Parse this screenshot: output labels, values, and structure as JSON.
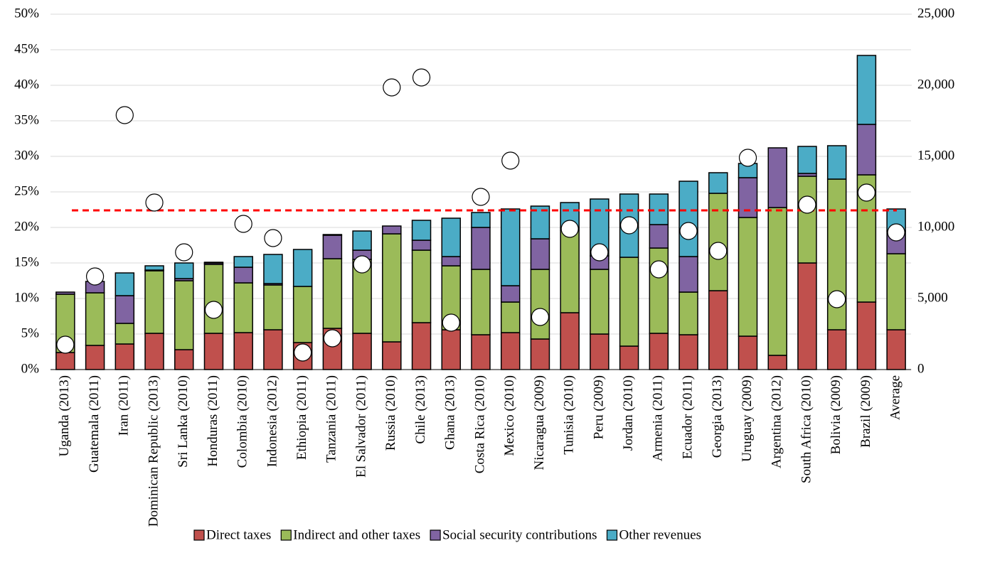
{
  "chart_data": {
    "type": "stacked_bar",
    "categories": [
      "Uganda (2013)",
      "Guatemala (2011)",
      "Iran (2011)",
      "Dominican Republic (2013)",
      "Sri Lanka (2010)",
      "Honduras (2011)",
      "Colombia (2010)",
      "Indonesia (2012)",
      "Ethiopia (2011)",
      "Tanzania (2011)",
      "El Salvador (2011)",
      "Russia (2010)",
      "Chile (2013)",
      "Ghana (2013)",
      "Costa Rica (2010)",
      "Mexico (2010)",
      "Nicaragua (2009)",
      "Tunisia (2010)",
      "Peru (2009)",
      "Jordan (2010)",
      "Armenia (2011)",
      "Ecuador (2011)",
      "Georgia (2013)",
      "Uruguay (2009)",
      "Argentina (2012)",
      "South Africa (2010)",
      "Bolivia (2009)",
      "Brazil (2009)",
      "Average"
    ],
    "series": [
      {
        "name": "Direct taxes",
        "color": "#c0504d",
        "values": [
          2.4,
          3.4,
          3.6,
          5.1,
          2.8,
          5.1,
          5.2,
          5.6,
          3.8,
          5.8,
          5.1,
          3.9,
          6.6,
          5.6,
          4.9,
          5.2,
          4.3,
          8.0,
          5.0,
          3.3,
          5.1,
          4.9,
          11.1,
          4.7,
          2.0,
          15.0,
          5.6,
          9.5,
          5.6
        ]
      },
      {
        "name": "Indirect and other taxes",
        "color": "#9bbb59",
        "values": [
          8.2,
          7.4,
          2.9,
          8.8,
          9.7,
          9.7,
          7.0,
          6.3,
          7.9,
          9.8,
          10.4,
          15.2,
          10.2,
          9.0,
          9.2,
          4.3,
          9.8,
          11.6,
          9.1,
          12.5,
          12.0,
          6.0,
          13.7,
          16.7,
          20.8,
          12.2,
          21.2,
          17.9,
          10.7
        ]
      },
      {
        "name": "Social security contributions",
        "color": "#8064a2",
        "values": [
          0.3,
          1.6,
          3.9,
          0.1,
          0.3,
          0.2,
          2.2,
          0.2,
          0,
          3.3,
          1.3,
          1.1,
          1.4,
          1.3,
          5.9,
          2.3,
          4.3,
          0.3,
          1.9,
          0,
          3.3,
          5.0,
          0,
          5.6,
          8.4,
          0.4,
          0,
          7.1,
          3.2
        ]
      },
      {
        "name": "Other revenues",
        "color": "#4bacc6",
        "values": [
          0,
          0,
          3.2,
          0.6,
          2.2,
          0.1,
          1.5,
          4.1,
          5.2,
          0.1,
          2.7,
          0,
          2.8,
          5.4,
          2.1,
          10.8,
          4.6,
          3.6,
          8.0,
          8.9,
          4.3,
          10.6,
          2.9,
          2.0,
          0,
          3.8,
          4.7,
          9.7,
          3.1
        ]
      }
    ],
    "points": {
      "axis": "y2",
      "values": [
        1750,
        6550,
        17900,
        11750,
        8250,
        4200,
        10250,
        9250,
        1200,
        2200,
        7400,
        19850,
        20550,
        3300,
        12150,
        14700,
        3700,
        9900,
        8250,
        10150,
        7050,
        9750,
        8350,
        14900,
        null,
        11600,
        4950,
        12450,
        9650
      ]
    },
    "reference_line": {
      "value": 22.4,
      "color": "#ff0000"
    },
    "ylim": [
      0,
      50
    ],
    "yticks": [
      {
        "value": 0,
        "label": "0%"
      },
      {
        "value": 5,
        "label": "5%"
      },
      {
        "value": 10,
        "label": "10%"
      },
      {
        "value": 15,
        "label": "15%"
      },
      {
        "value": 20,
        "label": "20%"
      },
      {
        "value": 25,
        "label": "25%"
      },
      {
        "value": 30,
        "label": "30%"
      },
      {
        "value": 35,
        "label": "35%"
      },
      {
        "value": 40,
        "label": "40%"
      },
      {
        "value": 45,
        "label": "45%"
      },
      {
        "value": 50,
        "label": "50%"
      }
    ],
    "y2lim": [
      0,
      25000
    ],
    "y2ticks": [
      0,
      {
        "value": 5000,
        "label": "5,000"
      },
      {
        "value": 10000,
        "label": "10,000"
      },
      {
        "value": 15000,
        "label": "15,000"
      },
      {
        "value": 20000,
        "label": "20,000"
      },
      {
        "value": 25000,
        "label": "25,000"
      }
    ],
    "grid": true,
    "legend": "bottom"
  }
}
